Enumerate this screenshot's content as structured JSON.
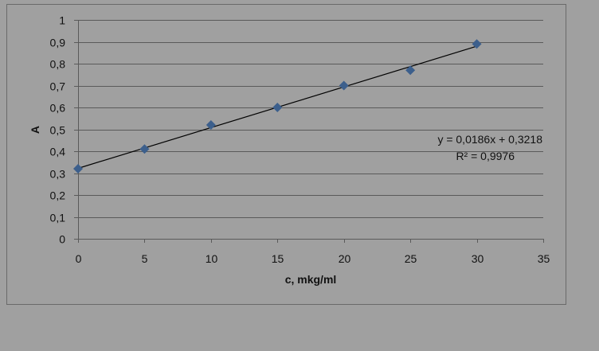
{
  "chart_data": {
    "type": "scatter",
    "title": "",
    "xlabel": "c, mkg/ml",
    "ylabel": "A",
    "xlim": [
      0,
      35
    ],
    "ylim": [
      0,
      1
    ],
    "grid": true,
    "x_ticks": [
      "0",
      "5",
      "10",
      "15",
      "20",
      "25",
      "30",
      "35"
    ],
    "y_ticks": [
      "0",
      "0,1",
      "0,2",
      "0,3",
      "0,4",
      "0,5",
      "0,6",
      "0,7",
      "0,8",
      "0,9",
      "1"
    ],
    "x_tick_values": [
      0,
      5,
      10,
      15,
      20,
      25,
      30,
      35
    ],
    "y_tick_values": [
      0,
      0.1,
      0.2,
      0.3,
      0.4,
      0.5,
      0.6,
      0.7,
      0.8,
      0.9,
      1
    ],
    "series": [
      {
        "name": "A",
        "x": [
          0,
          5,
          10,
          15,
          20,
          25,
          30
        ],
        "y": [
          0.32,
          0.41,
          0.52,
          0.6,
          0.7,
          0.77,
          0.89
        ],
        "color": "#3c5f8c",
        "marker": "diamond"
      }
    ],
    "trendline": {
      "slope": 0.0186,
      "intercept": 0.3218,
      "x_range": [
        0,
        30
      ],
      "color": "#000000"
    },
    "annotations": {
      "equation": "y = 0,0186x + 0,3218",
      "r_squared": "R² = 0,9976"
    },
    "legend": "none"
  }
}
